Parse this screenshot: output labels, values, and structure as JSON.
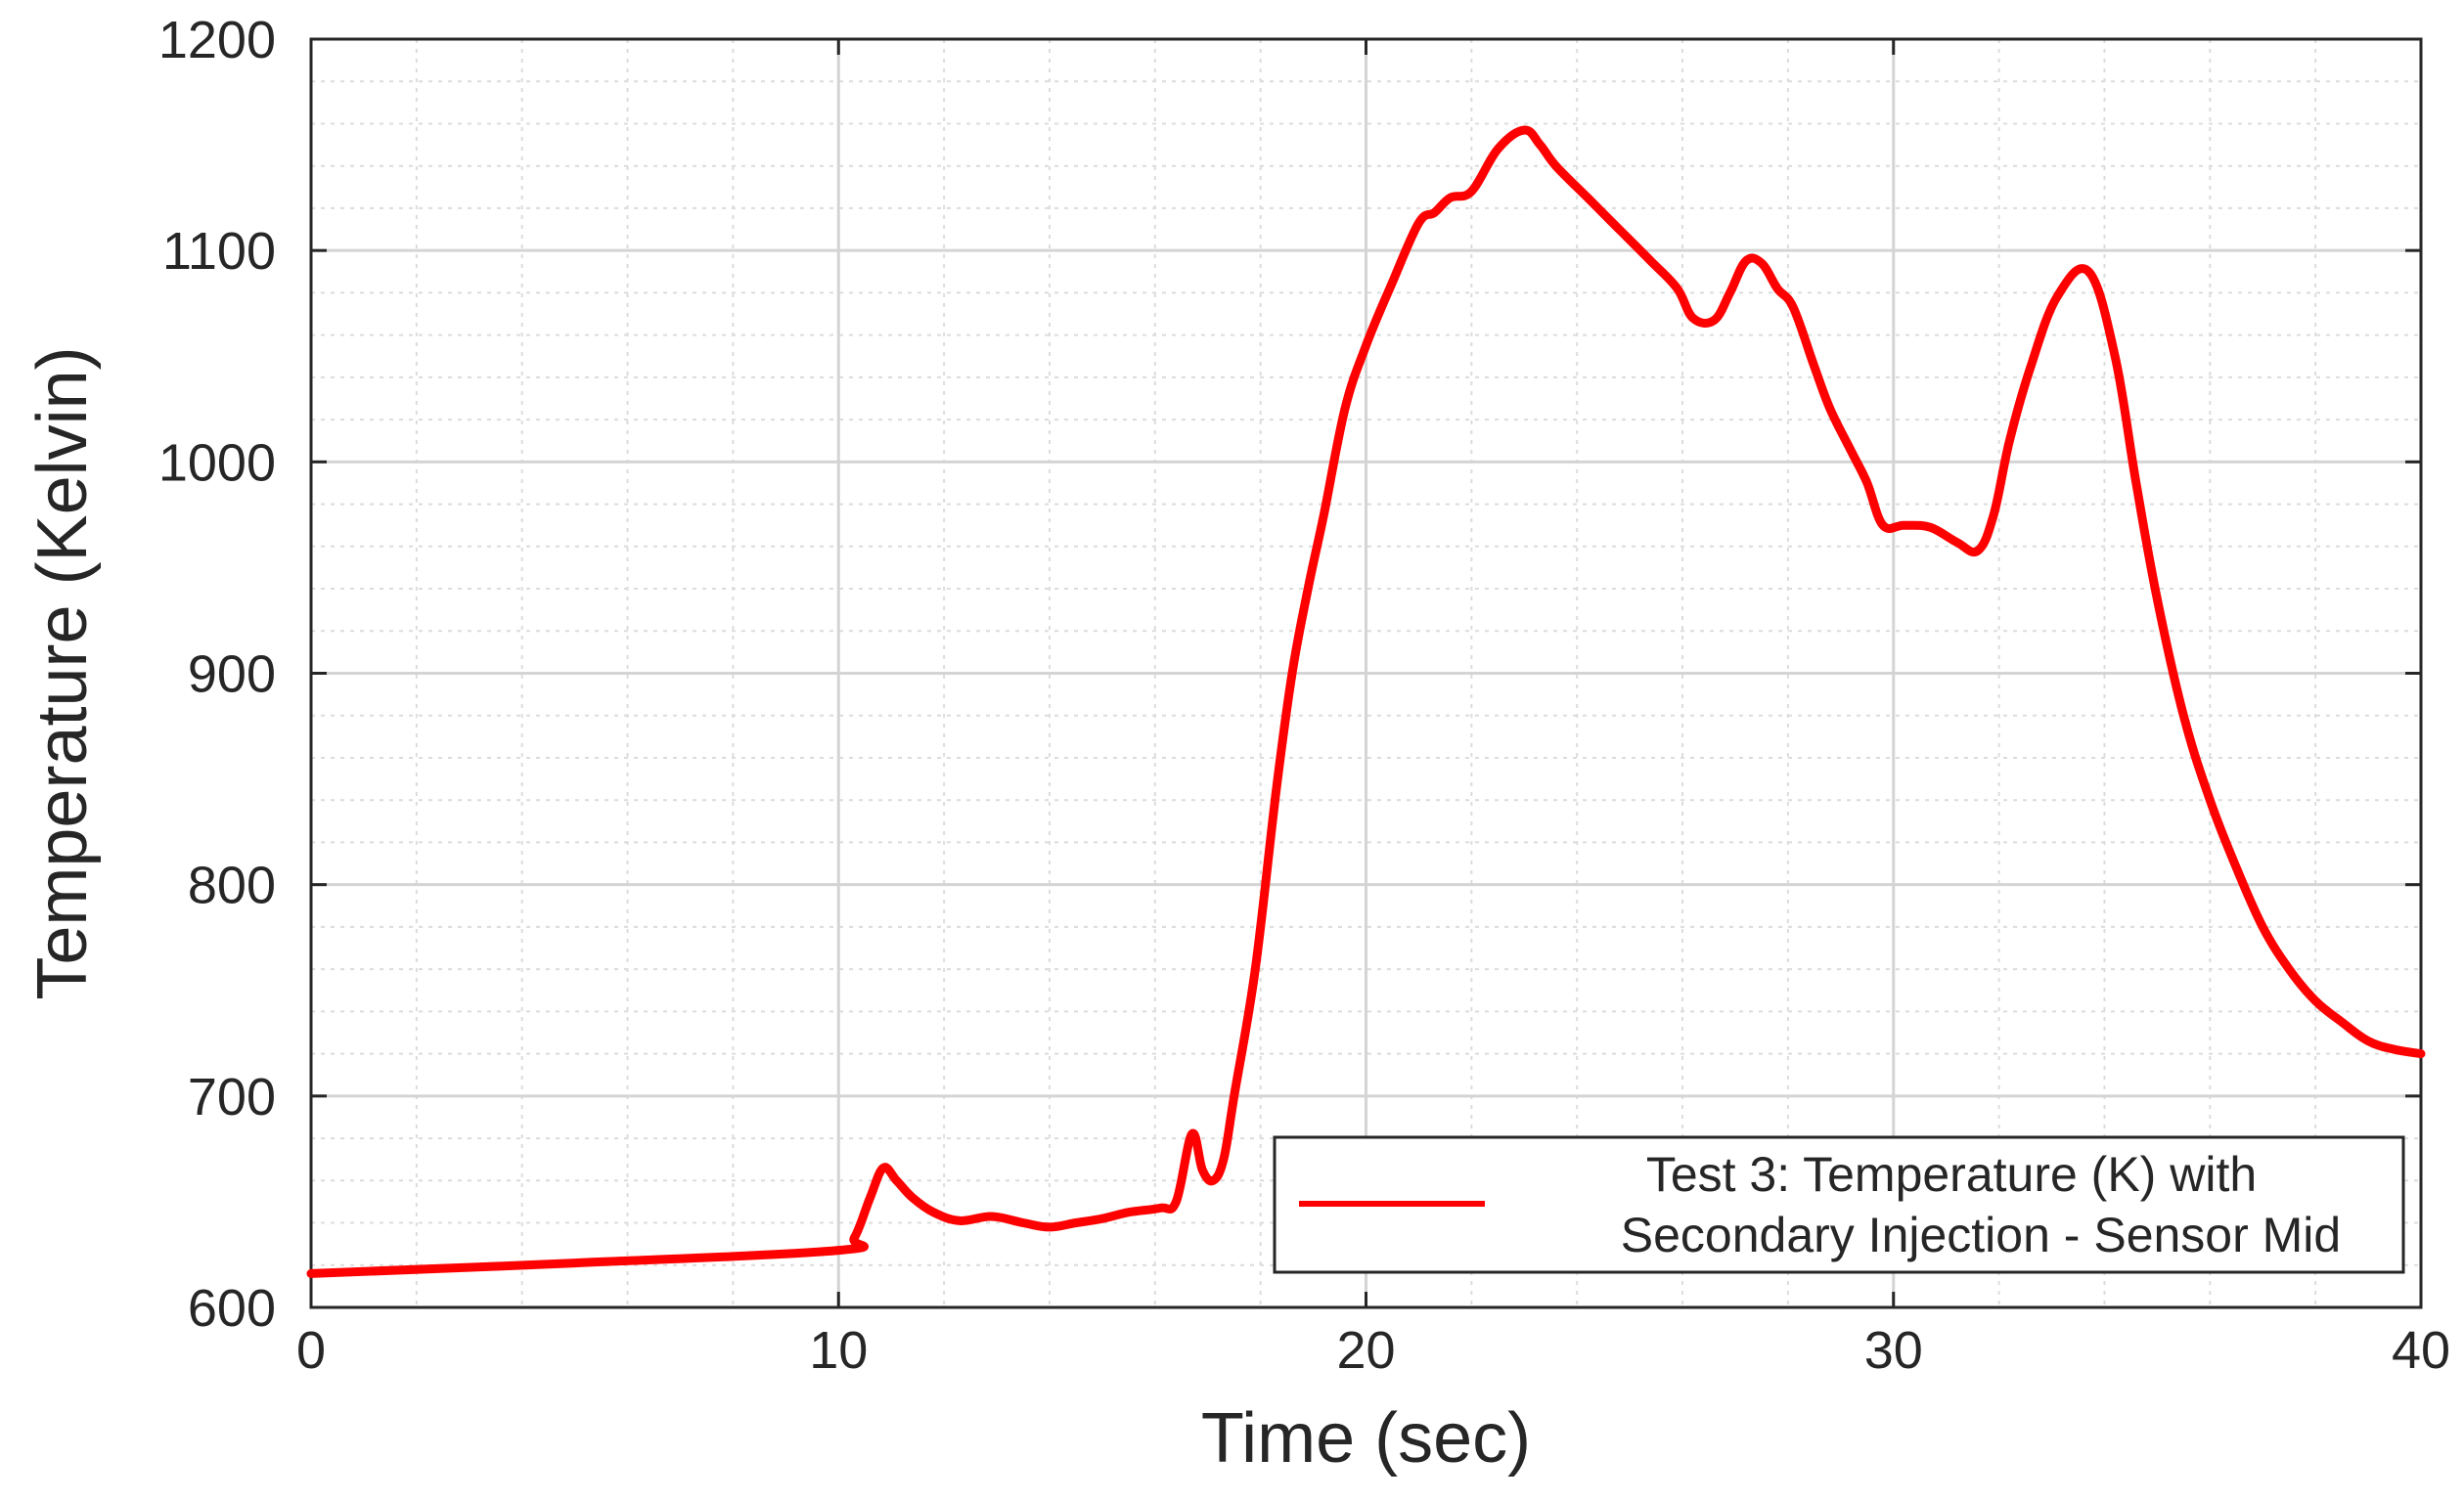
{
  "chart_data": {
    "type": "line",
    "xlabel": "Time (sec)",
    "ylabel": "Temperature (Kelvin)",
    "xlim": [
      0,
      40
    ],
    "ylim": [
      600,
      1200
    ],
    "xticks": [
      0,
      10,
      20,
      30,
      40
    ],
    "yticks": [
      600,
      700,
      800,
      900,
      1000,
      1100,
      1200
    ],
    "grid": true,
    "minor_grid": true,
    "legend_position": "bottom-right",
    "series": [
      {
        "name": "Test 3: Temperature (K) with Secondary Injection - Sensor Mid",
        "legend_lines": [
          "Test 3: Temperature (K) with",
          "Secondary Injection - Sensor Mid"
        ],
        "color": "#ff0000",
        "x": [
          0,
          5,
          10,
          10.3,
          10.6,
          10.85,
          11.1,
          11.4,
          11.8,
          12.3,
          12.9,
          13.5,
          14.0,
          14.5,
          15.0,
          15.5,
          16.1,
          16.4,
          16.7,
          16.9,
          17.1,
          17.3,
          17.5,
          17.9,
          18.3,
          18.6,
          18.9,
          19.2,
          19.6,
          20.0,
          20.5,
          21.0,
          21.3,
          21.6,
          22.0,
          22.5,
          23.0,
          23.3,
          23.6,
          24.2,
          24.8,
          25.4,
          25.9,
          26.2,
          26.6,
          26.9,
          27.2,
          27.5,
          27.8,
          28.1,
          28.5,
          28.8,
          29.2,
          29.5,
          29.8,
          30.2,
          30.7,
          31.2,
          31.6,
          31.9,
          32.2,
          32.6,
          33.1,
          33.7,
          34.2,
          34.6,
          35.0,
          35.5,
          36.0,
          36.5,
          37.0,
          37.5,
          38.0,
          38.5,
          39.0,
          39.5,
          40.0
        ],
        "y": [
          616,
          621,
          627,
          633,
          652,
          666,
          660,
          652,
          645,
          641,
          643,
          640,
          638,
          640,
          642,
          645,
          647,
          650,
          682,
          665,
          660,
          670,
          700,
          760,
          845,
          900,
          940,
          975,
          1025,
          1055,
          1085,
          1113,
          1118,
          1125,
          1128,
          1148,
          1157,
          1150,
          1140,
          1125,
          1110,
          1095,
          1082,
          1068,
          1067,
          1080,
          1095,
          1094,
          1082,
          1073,
          1045,
          1025,
          1005,
          990,
          970,
          970,
          969,
          962,
          958,
          975,
          1010,
          1045,
          1078,
          1090,
          1050,
          990,
          935,
          880,
          840,
          808,
          780,
          760,
          745,
          735,
          726,
          722,
          720
        ]
      }
    ]
  }
}
